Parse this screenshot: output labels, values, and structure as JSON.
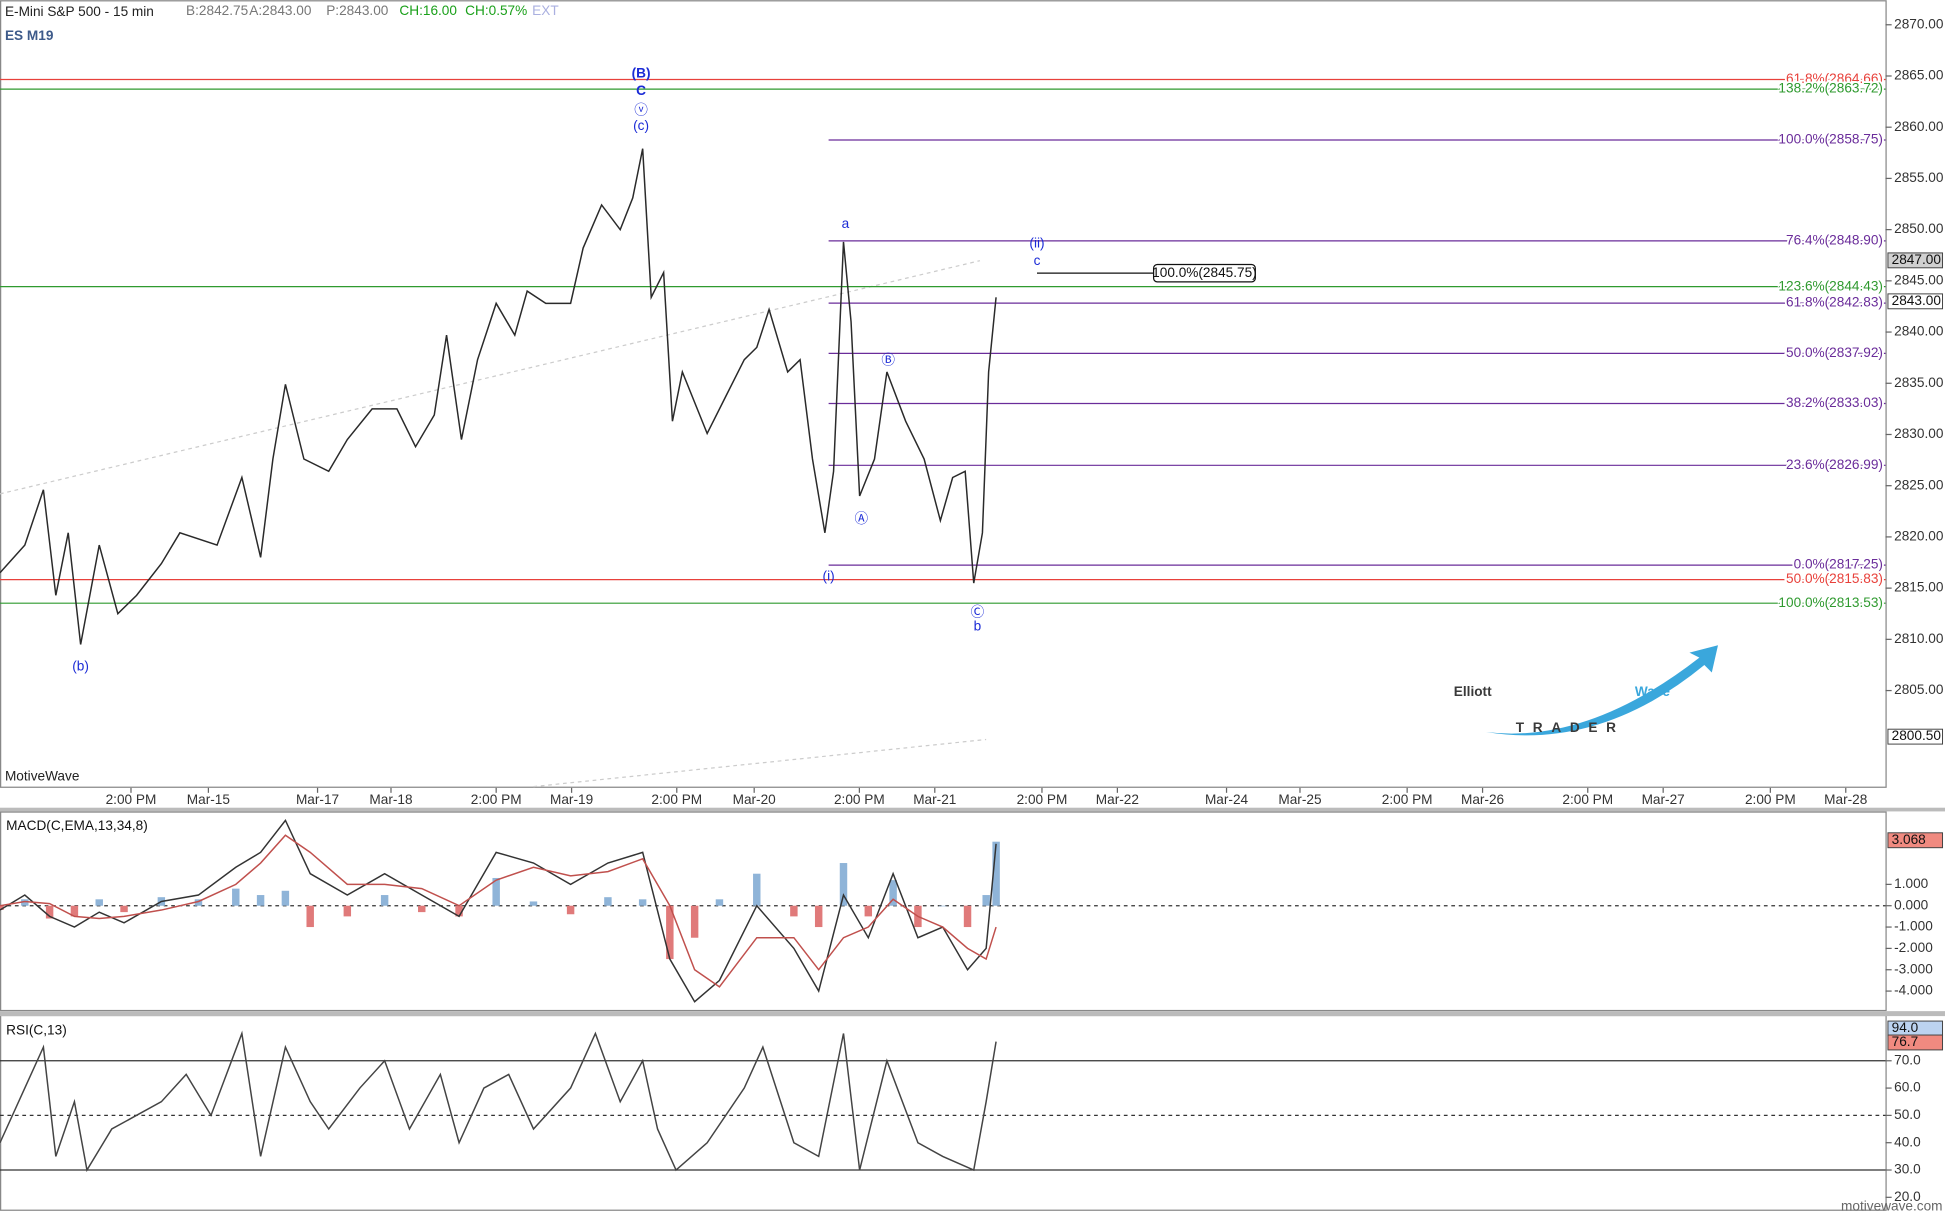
{
  "header": {
    "instrument": "E-Mini S&P 500 - 15 min",
    "bid": "B:2842.75",
    "ask": "A:2843.00",
    "price": "P:2843.00",
    "change": "CH:16.00",
    "change_pct": "CH:0.57%",
    "session": "EXT"
  },
  "logo": {
    "elliott": "Elliott",
    "wave": "Wave",
    "trader": "TRADER"
  },
  "footer": "motivewave.com",
  "chart_data": [
    {
      "type": "line",
      "symbol": "ES M19",
      "watermark": "MotiveWave",
      "x": [
        0,
        12.5,
        21.9,
        28.1,
        34.4,
        40.6,
        50,
        59.4,
        68.8,
        81.3,
        90.6,
        109.4,
        121.9,
        131.3,
        137.5,
        143.8,
        153.1,
        165.6,
        175,
        187.5,
        200,
        209.4,
        218.8,
        225,
        232.5,
        240.6,
        250,
        259.4,
        265.6,
        275,
        287.5,
        293.8,
        303.1,
        312.5,
        318.8,
        323.8,
        328.1,
        334.4,
        338.8,
        343.8,
        356.3,
        365.6,
        375,
        381.3,
        387.5,
        396.9,
        403.1,
        409.4,
        415.6,
        420,
        425,
        428.8,
        433.1,
        440.6,
        446.9,
        456.3,
        465.6,
        473.8,
        480,
        486.3,
        490.6,
        495,
        498.1,
        501.9
      ],
      "series": [
        {
          "color": "#2a2a2a",
          "values": [
            2816.5,
            2819.2,
            2824.6,
            2814.3,
            2820.4,
            2809.5,
            2819.2,
            2812.5,
            2814.3,
            2817.4,
            2820.4,
            2819.2,
            2825.8,
            2818,
            2827.6,
            2834.9,
            2827.6,
            2826.4,
            2829.5,
            2832.5,
            2832.5,
            2828.8,
            2831.9,
            2839.7,
            2829.5,
            2837.3,
            2842.8,
            2839.7,
            2844,
            2842.8,
            2842.8,
            2848.2,
            2852.4,
            2850,
            2853.1,
            2857.9,
            2843.4,
            2845.8,
            2831.3,
            2836.1,
            2830.1,
            2833.7,
            2837.3,
            2838.5,
            2842.2,
            2836.1,
            2837.3,
            2827.6,
            2820.4,
            2826.4,
            2848.8,
            2841,
            2824,
            2827.6,
            2836.1,
            2831.3,
            2827.6,
            2821.6,
            2825.8,
            2826.4,
            2815.5,
            2820.4,
            2836.1,
            2843.4
          ]
        }
      ],
      "xlim": [
        0,
        950
      ],
      "xticks": [
        {
          "value": 66,
          "label": "2:00 PM"
        },
        {
          "value": 105,
          "label": "Mar-15"
        },
        {
          "value": 160,
          "label": "Mar-17"
        },
        {
          "value": 197,
          "label": "Mar-18"
        },
        {
          "value": 250,
          "label": "2:00 PM"
        },
        {
          "value": 288,
          "label": "Mar-19"
        },
        {
          "value": 341,
          "label": "2:00 PM"
        },
        {
          "value": 380,
          "label": "Mar-20"
        },
        {
          "value": 433,
          "label": "2:00 PM"
        },
        {
          "value": 471,
          "label": "Mar-21"
        },
        {
          "value": 525,
          "label": "2:00 PM"
        },
        {
          "value": 563,
          "label": "Mar-22"
        },
        {
          "value": 618,
          "label": "Mar-24"
        },
        {
          "value": 655,
          "label": "Mar-25"
        },
        {
          "value": 709,
          "label": "2:00 PM"
        },
        {
          "value": 747,
          "label": "Mar-26"
        },
        {
          "value": 800,
          "label": "2:00 PM"
        },
        {
          "value": 838,
          "label": "Mar-27"
        },
        {
          "value": 892,
          "label": "2:00 PM"
        },
        {
          "value": 930,
          "label": "Mar-28"
        }
      ],
      "ylim": [
        2795.5,
        2872.4
      ],
      "yticks": [
        {
          "value": 2805,
          "label": "2805.00"
        },
        {
          "value": 2810,
          "label": "2810.00"
        },
        {
          "value": 2815,
          "label": "2815.00"
        },
        {
          "value": 2820,
          "label": "2820.00"
        },
        {
          "value": 2825,
          "label": "2825.00"
        },
        {
          "value": 2830,
          "label": "2830.00"
        },
        {
          "value": 2835,
          "label": "2835.00"
        },
        {
          "value": 2840,
          "label": "2840.00"
        },
        {
          "value": 2845,
          "label": "2845.00"
        },
        {
          "value": 2850,
          "label": "2850.00"
        },
        {
          "value": 2855,
          "label": "2855.00"
        },
        {
          "value": 2860,
          "label": "2860.00"
        },
        {
          "value": 2865,
          "label": "2865.00"
        },
        {
          "value": 2870,
          "label": "2870.00"
        }
      ],
      "fib_levels": [
        {
          "value": 2864.66,
          "label": "61.8%(2864.66)",
          "color": "#e8413b"
        },
        {
          "value": 2863.72,
          "label": "138.2%(2863.72)",
          "color": "#2f9a2f"
        },
        {
          "value": 2858.75,
          "label": "100.0%(2858.75)",
          "color": "#6a2c9a",
          "x_start": 417.5
        },
        {
          "value": 2848.9,
          "label": "76.4%(2848.90)",
          "color": "#6a2c9a",
          "x_start": 417.5
        },
        {
          "value": 2844.43,
          "label": "123.6%(2844.43)",
          "color": "#2f9a2f"
        },
        {
          "value": 2842.83,
          "label": "61.8%(2842.83)",
          "color": "#6a2c9a",
          "x_start": 417.5
        },
        {
          "value": 2837.92,
          "label": "50.0%(2837.92)",
          "color": "#6a2c9a",
          "x_start": 417.5
        },
        {
          "value": 2833.03,
          "label": "38.2%(2833.03)",
          "color": "#6a2c9a",
          "x_start": 417.5
        },
        {
          "value": 2826.99,
          "label": "23.6%(2826.99)",
          "color": "#6a2c9a",
          "x_start": 417.5
        },
        {
          "value": 2817.25,
          "label": "0.0%(2817.25)",
          "color": "#6a2c9a",
          "x_start": 417.5
        },
        {
          "value": 2815.83,
          "label": "50.0%(2815.83)",
          "color": "#e8413b"
        },
        {
          "value": 2813.53,
          "label": "100.0%(2813.53)",
          "color": "#2f9a2f"
        }
      ],
      "annotations": [
        {
          "text": "(B)",
          "x": 323,
          "y": 2865.2
        },
        {
          "text": "C",
          "x": 323,
          "y": 2863.5
        },
        {
          "text": "ⓥ",
          "x": 323,
          "y": 2861.6
        },
        {
          "text": "(c)",
          "x": 323,
          "y": 2860.1
        },
        {
          "text": "a",
          "x": 426,
          "y": 2850.5
        },
        {
          "text": "(ii)",
          "x": 522.5,
          "y": 2848.6
        },
        {
          "text": "c",
          "x": 522.5,
          "y": 2846.9
        },
        {
          "text": "Ⓑ",
          "x": 447.5,
          "y": 2837.2
        },
        {
          "text": "Ⓐ",
          "x": 434,
          "y": 2821.7
        },
        {
          "text": "(i)",
          "x": 417.5,
          "y": 2816.1
        },
        {
          "text": "Ⓒ",
          "x": 492.5,
          "y": 2812.6
        },
        {
          "text": "b",
          "x": 492.5,
          "y": 2811.2
        },
        {
          "text": "(b)",
          "x": 40.6,
          "y": 2807.3
        }
      ],
      "projection": {
        "value": 2845.75,
        "label": "100.0%(2845.75)",
        "x": [
          522.5,
          581.25
        ]
      },
      "price_tags": [
        {
          "value": 2847,
          "label": "2847.00",
          "color": "#d0d0d0"
        },
        {
          "value": 2843,
          "label": "2843.00",
          "color": "#ffffff"
        },
        {
          "value": 2800.5,
          "label": "2800.50",
          "color": "#ffffff"
        }
      ]
    },
    {
      "type": "macd",
      "title": "MACD(C,EMA,13,34,8)",
      "x": [
        0,
        12.5,
        25,
        37.5,
        50,
        62.5,
        81.3,
        100,
        118.8,
        131.3,
        143.8,
        156.3,
        175,
        193.8,
        212.5,
        231.3,
        250,
        268.8,
        287.5,
        306.3,
        323.8,
        337.5,
        350,
        362.5,
        381.3,
        400,
        412.5,
        425,
        437.5,
        450,
        462.5,
        475,
        487.5,
        496.9,
        501.9
      ],
      "series": [
        {
          "color": "#333333",
          "values": [
            -0.2,
            0.5,
            -0.5,
            -1,
            -0.3,
            -0.8,
            0.2,
            0.5,
            1.8,
            2.5,
            4.0,
            1.5,
            0.5,
            1.5,
            0.5,
            -0.5,
            2.5,
            2.0,
            1.0,
            2.0,
            2.5,
            -2.5,
            -4.5,
            -3.5,
            0.0,
            -2,
            -4,
            0.5,
            -1.5,
            1.5,
            -1.5,
            -1.0,
            -3.0,
            -2.0,
            2.9
          ]
        },
        {
          "color": "#c0504d",
          "values": [
            0,
            0.2,
            0.1,
            -0.5,
            -0.6,
            -0.5,
            -0.2,
            0.2,
            1.0,
            2.0,
            3.3,
            2.5,
            1.0,
            1.0,
            0.8,
            0.0,
            1.2,
            1.8,
            1.4,
            1.6,
            2.2,
            0.0,
            -3.0,
            -3.8,
            -1.5,
            -1.5,
            -3.0,
            -1.5,
            -1.0,
            0.3,
            -0.5,
            -1.0,
            -2.0,
            -2.5,
            -1.0
          ]
        }
      ],
      "histogram": {
        "positive_color": "#8fb4d8",
        "negative_color": "#e07a7a",
        "values": [
          -0.2,
          0.3,
          -0.6,
          -0.5,
          0.3,
          -0.3,
          0.4,
          0.3,
          0.8,
          0.5,
          0.7,
          -1.0,
          -0.5,
          0.5,
          -0.3,
          -0.5,
          1.3,
          0.2,
          -0.4,
          0.4,
          0.3,
          -2.5,
          -1.5,
          0.3,
          1.5,
          -0.5,
          -1.0,
          2.0,
          -0.5,
          1.2,
          -1.0,
          0.0,
          -1.0,
          0.5,
          3.0
        ]
      },
      "ylim": [
        -4.94,
        4.36
      ],
      "yticks": [
        {
          "value": 1,
          "label": "1.000"
        },
        {
          "value": 0,
          "label": "0.000"
        },
        {
          "value": -1,
          "label": "-1.000"
        },
        {
          "value": -2,
          "label": "-2.000"
        },
        {
          "value": -3,
          "label": "-3.000"
        },
        {
          "value": -4,
          "label": "-4.000"
        }
      ],
      "hlines": [
        {
          "value": 0,
          "dashed": true
        }
      ],
      "price_tags": [
        {
          "value": 3.068,
          "label": "3.068",
          "color": "#f08a80"
        }
      ]
    },
    {
      "type": "line",
      "title": "RSI(C,13)",
      "x": [
        0,
        12.5,
        21.9,
        28.1,
        37.5,
        43.8,
        56.3,
        68.8,
        81.3,
        93.8,
        106.3,
        121.9,
        131.3,
        143.8,
        156.3,
        165.6,
        181.3,
        193.8,
        206.3,
        221.9,
        231.3,
        243.8,
        256.3,
        268.8,
        287.5,
        300,
        312.5,
        323.8,
        331.3,
        340.6,
        356.3,
        375,
        384.4,
        400,
        412.5,
        425,
        433.1,
        446.9,
        462.5,
        475,
        490.6,
        496.9,
        501.9
      ],
      "series": [
        {
          "color": "#444444",
          "values": [
            40,
            60,
            75,
            35,
            55,
            30,
            45,
            50,
            55,
            65,
            50,
            80,
            35,
            75,
            55,
            45,
            60,
            70,
            45,
            65,
            40,
            60,
            65,
            45,
            60,
            80,
            55,
            70,
            45,
            30,
            40,
            60,
            75,
            40,
            35,
            80,
            30,
            70,
            40,
            35,
            30,
            55,
            77
          ]
        }
      ],
      "ylim": [
        15.5,
        85.9
      ],
      "yticks": [
        {
          "value": 70,
          "label": "70.0"
        },
        {
          "value": 60,
          "label": "60.0"
        },
        {
          "value": 50,
          "label": "50.0"
        },
        {
          "value": 40,
          "label": "40.0"
        },
        {
          "value": 30,
          "label": "30.0"
        },
        {
          "value": 20,
          "label": "20.0"
        }
      ],
      "hlines": [
        {
          "value": 70,
          "dashed": false
        },
        {
          "value": 50,
          "dashed": true
        },
        {
          "value": 30,
          "dashed": false
        }
      ],
      "price_tags": [
        {
          "value": 94.0,
          "label": "94.0",
          "color": "#bcd3f0"
        },
        {
          "value": 76.7,
          "label": "76.7",
          "color": "#f08a80"
        }
      ]
    }
  ]
}
